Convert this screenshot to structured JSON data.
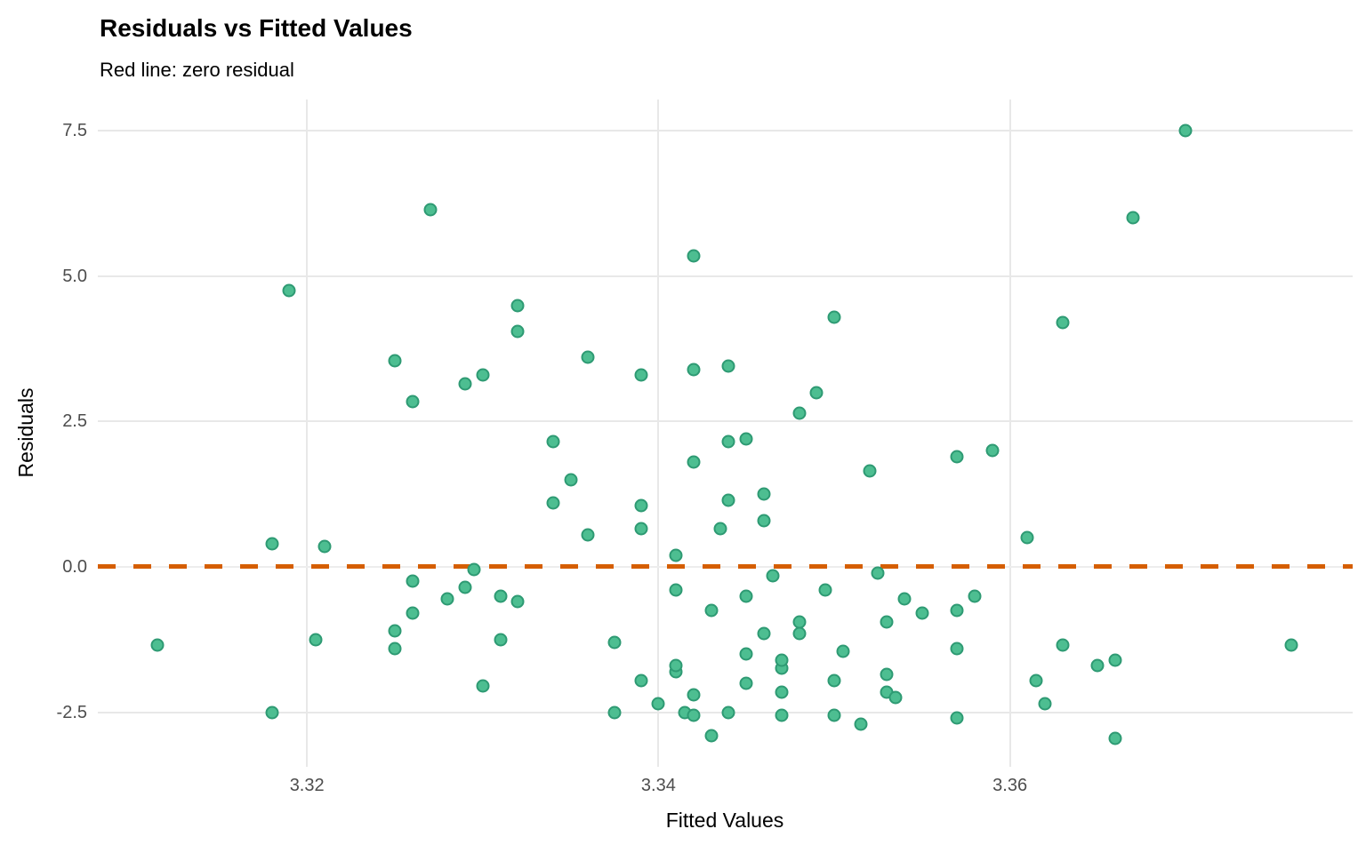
{
  "header": {
    "title": "Residuals vs Fitted Values",
    "subtitle": "Red line: zero residual"
  },
  "colors": {
    "point_fill": "#4DBE91",
    "point_stroke": "#2E9A73",
    "reference_line": "#D55E00",
    "gridline": "#E8E8E8",
    "zero_gridline": "#EDEDED",
    "tick_text": "#4D4D4D",
    "text": "#000000",
    "background": "#FFFFFF"
  },
  "chart_data": {
    "type": "scatter",
    "title": "Residuals vs Fitted Values",
    "subtitle": "Red line: zero residual",
    "xlabel": "Fitted Values",
    "ylabel": "Residuals",
    "xlim": [
      3.3081,
      3.3795
    ],
    "ylim": [
      -3.44,
      8.04
    ],
    "x_ticks": [
      {
        "value": 3.32,
        "label": "3.32"
      },
      {
        "value": 3.34,
        "label": "3.34"
      },
      {
        "value": 3.36,
        "label": "3.36"
      }
    ],
    "y_ticks": [
      {
        "value": -2.5,
        "label": "-2.5"
      },
      {
        "value": 0.0,
        "label": "0.0"
      },
      {
        "value": 2.5,
        "label": "2.5"
      },
      {
        "value": 5.0,
        "label": "5.0"
      },
      {
        "value": 7.5,
        "label": "7.5"
      }
    ],
    "grid": "major only, light gray, no minor gridlines, white background",
    "legend": "none",
    "reference_line": {
      "type": "hline",
      "y": 0.0,
      "style": "dashed",
      "color": "#D55E00",
      "meaning": "zero residual"
    },
    "n_points": 100,
    "points": [
      [
        3.319,
        4.75
      ],
      [
        3.327,
        6.15
      ],
      [
        3.342,
        5.35
      ],
      [
        3.332,
        4.5
      ],
      [
        3.35,
        4.3
      ],
      [
        3.37,
        7.5
      ],
      [
        3.367,
        6.0
      ],
      [
        3.363,
        4.2
      ],
      [
        3.325,
        3.55
      ],
      [
        3.326,
        2.85
      ],
      [
        3.318,
        0.4
      ],
      [
        3.321,
        0.35
      ],
      [
        3.332,
        4.05
      ],
      [
        3.336,
        3.6
      ],
      [
        3.33,
        3.3
      ],
      [
        3.329,
        3.15
      ],
      [
        3.339,
        3.3
      ],
      [
        3.342,
        3.4
      ],
      [
        3.344,
        3.45
      ],
      [
        3.334,
        2.15
      ],
      [
        3.335,
        1.5
      ],
      [
        3.334,
        1.1
      ],
      [
        3.336,
        0.55
      ],
      [
        3.339,
        1.05
      ],
      [
        3.339,
        0.65
      ],
      [
        3.342,
        1.8
      ],
      [
        3.344,
        2.15
      ],
      [
        3.344,
        1.15
      ],
      [
        3.3435,
        0.65
      ],
      [
        3.349,
        3.0
      ],
      [
        3.348,
        2.65
      ],
      [
        3.345,
        2.2
      ],
      [
        3.352,
        1.65
      ],
      [
        3.357,
        1.9
      ],
      [
        3.359,
        2.0
      ],
      [
        3.346,
        1.25
      ],
      [
        3.346,
        0.8
      ],
      [
        3.361,
        0.5
      ],
      [
        3.3115,
        -1.35
      ],
      [
        3.3205,
        -1.25
      ],
      [
        3.325,
        -1.1
      ],
      [
        3.325,
        -1.4
      ],
      [
        3.326,
        -0.25
      ],
      [
        3.326,
        -0.8
      ],
      [
        3.318,
        -2.5
      ],
      [
        3.3295,
        -0.05
      ],
      [
        3.329,
        -0.35
      ],
      [
        3.328,
        -0.55
      ],
      [
        3.331,
        -0.5
      ],
      [
        3.332,
        -0.6
      ],
      [
        3.331,
        -1.25
      ],
      [
        3.3375,
        -1.3
      ],
      [
        3.33,
        -2.05
      ],
      [
        3.339,
        -1.95
      ],
      [
        3.341,
        0.2
      ],
      [
        3.341,
        -0.4
      ],
      [
        3.343,
        -0.75
      ],
      [
        3.341,
        -1.8
      ],
      [
        3.341,
        -1.7
      ],
      [
        3.34,
        -2.35
      ],
      [
        3.3415,
        -2.5
      ],
      [
        3.342,
        -2.55
      ],
      [
        3.343,
        -2.9
      ],
      [
        3.3375,
        -2.5
      ],
      [
        3.342,
        -2.2
      ],
      [
        3.344,
        -2.5
      ],
      [
        3.3465,
        -0.15
      ],
      [
        3.345,
        -0.5
      ],
      [
        3.3495,
        -0.4
      ],
      [
        3.346,
        -1.15
      ],
      [
        3.348,
        -0.95
      ],
      [
        3.348,
        -1.15
      ],
      [
        3.345,
        -1.5
      ],
      [
        3.347,
        -1.75
      ],
      [
        3.347,
        -1.6
      ],
      [
        3.345,
        -2.0
      ],
      [
        3.347,
        -2.15
      ],
      [
        3.3505,
        -1.45
      ],
      [
        3.35,
        -1.95
      ],
      [
        3.3525,
        -0.1
      ],
      [
        3.354,
        -0.55
      ],
      [
        3.355,
        -0.8
      ],
      [
        3.353,
        -0.95
      ],
      [
        3.357,
        -0.75
      ],
      [
        3.358,
        -0.5
      ],
      [
        3.357,
        -1.4
      ],
      [
        3.353,
        -1.85
      ],
      [
        3.353,
        -2.15
      ],
      [
        3.3535,
        -2.25
      ],
      [
        3.347,
        -2.55
      ],
      [
        3.35,
        -2.55
      ],
      [
        3.3515,
        -2.7
      ],
      [
        3.357,
        -2.6
      ],
      [
        3.3615,
        -1.95
      ],
      [
        3.362,
        -2.35
      ],
      [
        3.363,
        -1.35
      ],
      [
        3.365,
        -1.7
      ],
      [
        3.366,
        -1.6
      ],
      [
        3.376,
        -1.35
      ],
      [
        3.366,
        -2.95
      ]
    ]
  }
}
